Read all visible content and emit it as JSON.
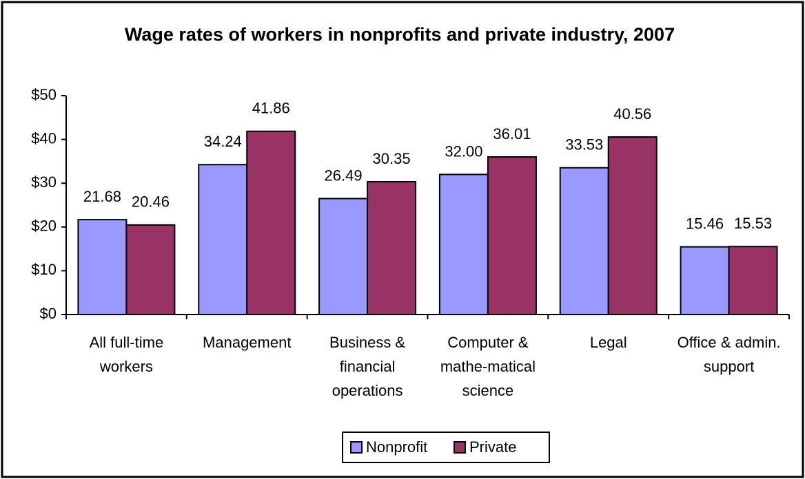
{
  "chart_data": {
    "type": "bar",
    "title": "Wage rates of workers in nonprofits and private industry, 2007",
    "categories": [
      "All full-time workers",
      "Management",
      "Business & financial operations",
      "Computer & mathe-matical science",
      "Legal",
      "Office & admin. support"
    ],
    "series": [
      {
        "name": "Nonprofit",
        "color": "#9999ff",
        "values": [
          21.68,
          34.24,
          26.49,
          32,
          33.53,
          15.46
        ],
        "value_labels": [
          "21.68",
          "34.24",
          "26.49",
          "32.00",
          "33.53",
          "15.46"
        ]
      },
      {
        "name": "Private",
        "color": "#993366",
        "values": [
          20.46,
          41.86,
          30.35,
          36.01,
          40.56,
          15.53
        ],
        "value_labels": [
          "20.46",
          "41.86",
          "30.35",
          "36.01",
          "40.56",
          "15.53"
        ]
      }
    ],
    "ylim": [
      0,
      50
    ],
    "yticks": [
      {
        "value": 0,
        "label": "$0"
      },
      {
        "value": 10,
        "label": "$10"
      },
      {
        "value": 20,
        "label": "$20"
      },
      {
        "value": 30,
        "label": "$30"
      },
      {
        "value": 40,
        "label": "$40"
      },
      {
        "value": 50,
        "label": "$50"
      }
    ],
    "legend": "bottom"
  }
}
